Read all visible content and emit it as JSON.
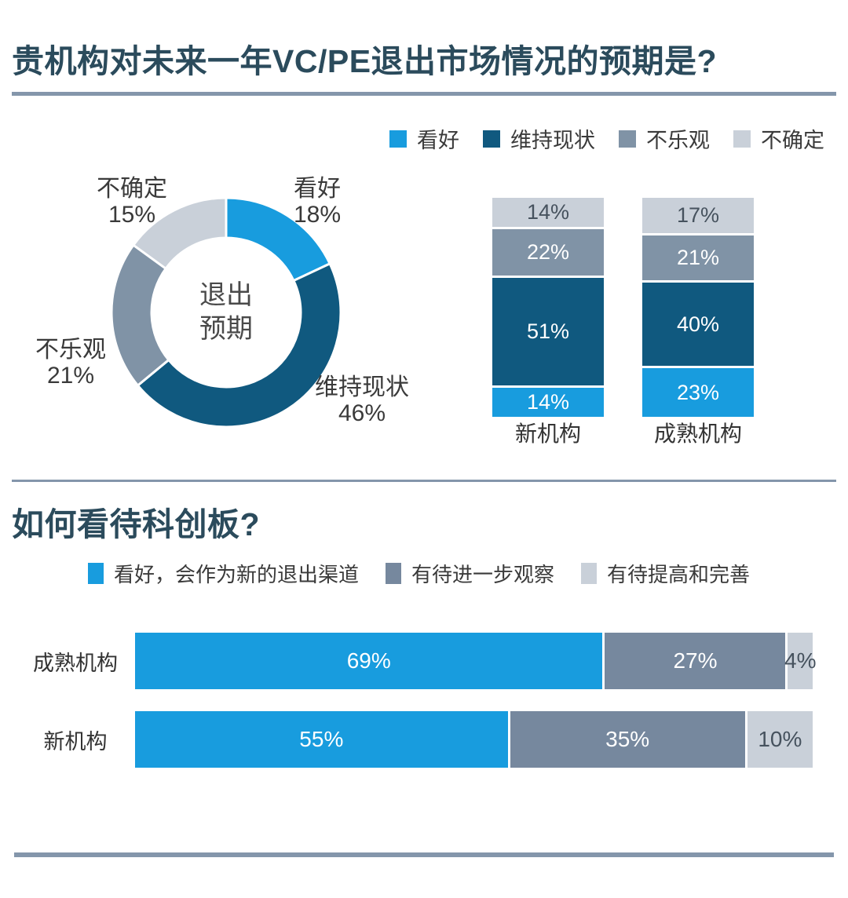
{
  "colors": {
    "blue": "#189CDE",
    "dark_blue": "#10597F",
    "gray": "#8093A6",
    "light_gray": "#C9D0D9",
    "hbar_gray": "#76889E",
    "title": "#2B4B5C",
    "divider": "#8496AB",
    "text_dark": "#3A3A3A",
    "text_on_light": "#46525E",
    "text_white": "#FFFFFF"
  },
  "section1": {
    "title": "贵机构对未来一年VC/PE退出市场情况的预期是?",
    "legend": [
      {
        "label": "看好",
        "color": "#189CDE"
      },
      {
        "label": "维持现状",
        "color": "#10597F"
      },
      {
        "label": "不乐观",
        "color": "#8093A6"
      },
      {
        "label": "不确定",
        "color": "#C9D0D9"
      }
    ],
    "donut": {
      "center_line1": "退出",
      "center_line2": "预期",
      "segments": [
        {
          "label": "看好",
          "value": 18,
          "color": "#189CDE"
        },
        {
          "label": "维持现状",
          "value": 46,
          "color": "#10597F"
        },
        {
          "label": "不乐观",
          "value": 21,
          "color": "#8093A6"
        },
        {
          "label": "不确定",
          "value": 15,
          "color": "#C9D0D9"
        }
      ]
    },
    "columns": [
      {
        "category": "新机构",
        "segments": [
          {
            "label": "看好",
            "value": 14
          },
          {
            "label": "维持现状",
            "value": 51
          },
          {
            "label": "不乐观",
            "value": 22
          },
          {
            "label": "不确定",
            "value": 14
          }
        ]
      },
      {
        "category": "成熟机构",
        "segments": [
          {
            "label": "看好",
            "value": 23
          },
          {
            "label": "维持现状",
            "value": 40
          },
          {
            "label": "不乐观",
            "value": 21
          },
          {
            "label": "不确定",
            "value": 17
          }
        ]
      }
    ]
  },
  "section2": {
    "title": "如何看待科创板?",
    "legend": [
      {
        "label": "看好，会作为新的退出渠道",
        "color": "#189CDE"
      },
      {
        "label": "有待进一步观察",
        "color": "#76889E"
      },
      {
        "label": "有待提高和完善",
        "color": "#C9D0D9"
      }
    ],
    "rows": [
      {
        "label": "成熟机构",
        "segments": [
          {
            "name": "看好，会作为新的退出渠道",
            "value": 69
          },
          {
            "name": "有待进一步观察",
            "value": 27
          },
          {
            "name": "有待提高和完善",
            "value": 4
          }
        ]
      },
      {
        "label": "新机构",
        "segments": [
          {
            "name": "看好，会作为新的退出渠道",
            "value": 55
          },
          {
            "name": "有待进一步观察",
            "value": 35
          },
          {
            "name": "有待提高和完善",
            "value": 10
          }
        ]
      }
    ]
  },
  "chart_data": [
    {
      "type": "pie",
      "subtype": "donut",
      "title": "贵机构对未来一年VC/PE退出市场情况的预期是?",
      "center_label": "退出预期",
      "labels": [
        "看好",
        "维持现状",
        "不乐观",
        "不确定"
      ],
      "values": [
        18,
        46,
        21,
        15
      ],
      "unit": "%",
      "colors": [
        "#189CDE",
        "#10597F",
        "#8093A6",
        "#C9D0D9"
      ],
      "legend_position": "top-right",
      "start_angle": "12-o'clock, clockwise"
    },
    {
      "type": "bar",
      "stacked": true,
      "orientation": "vertical",
      "categories": [
        "新机构",
        "成熟机构"
      ],
      "series": [
        {
          "name": "看好",
          "values": [
            14,
            23
          ]
        },
        {
          "name": "维持现状",
          "values": [
            51,
            40
          ]
        },
        {
          "name": "不乐观",
          "values": [
            22,
            21
          ]
        },
        {
          "name": "不确定",
          "values": [
            14,
            17
          ]
        }
      ],
      "unit": "%",
      "data_labels": true
    },
    {
      "type": "bar",
      "stacked": true,
      "orientation": "horizontal",
      "title": "如何看待科创板?",
      "categories": [
        "成熟机构",
        "新机构"
      ],
      "series": [
        {
          "name": "看好，会作为新的退出渠道",
          "values": [
            69,
            55
          ]
        },
        {
          "name": "有待进一步观察",
          "values": [
            27,
            35
          ]
        },
        {
          "name": "有待提高和完善",
          "values": [
            4,
            10
          ]
        }
      ],
      "unit": "%",
      "data_labels": true,
      "legend_position": "top"
    }
  ]
}
